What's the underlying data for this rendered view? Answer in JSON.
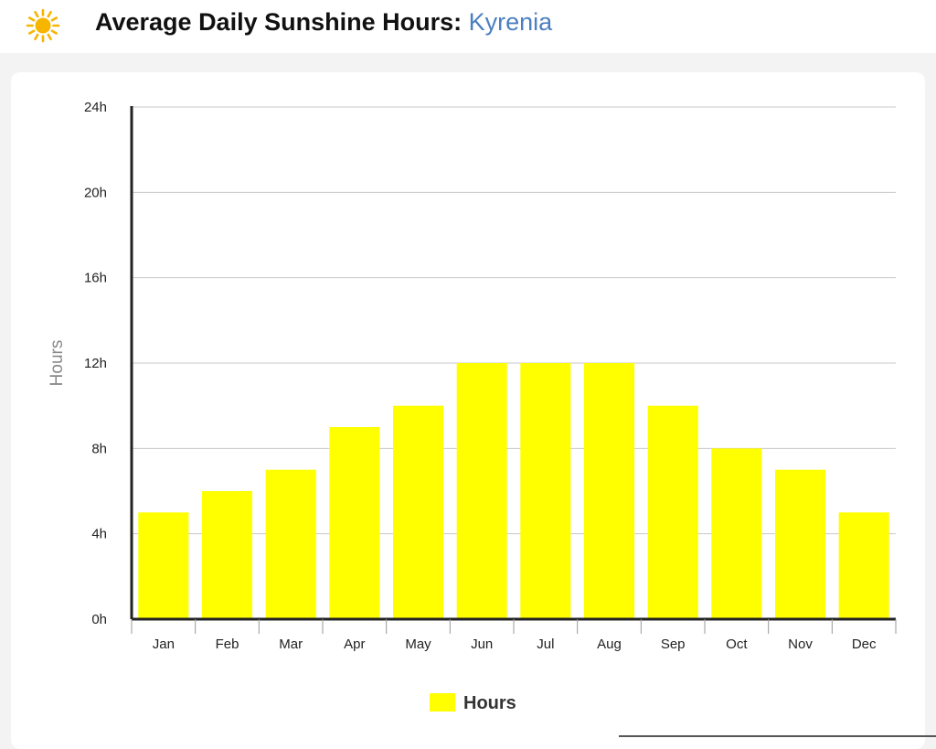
{
  "header": {
    "title_prefix": "Average Daily Sunshine Hours: ",
    "city": "Kyrenia",
    "icon": "sun-icon"
  },
  "colors": {
    "bar": "#ffff00",
    "city": "#4a7fc1",
    "grid": "#c8c8c8",
    "axis": "#222222",
    "sun": "#f7b500"
  },
  "chart_data": {
    "type": "bar",
    "title": "Average Daily Sunshine Hours: Kyrenia",
    "categories": [
      "Jan",
      "Feb",
      "Mar",
      "Apr",
      "May",
      "Jun",
      "Jul",
      "Aug",
      "Sep",
      "Oct",
      "Nov",
      "Dec"
    ],
    "series": [
      {
        "name": "Hours",
        "values": [
          5,
          6,
          7,
          9,
          10,
          12,
          12,
          12,
          10,
          8,
          7,
          5
        ]
      }
    ],
    "ylabel": "Hours",
    "xlabel": "",
    "ylim": [
      0,
      24
    ],
    "yticks": [
      0,
      4,
      8,
      12,
      16,
      20,
      24
    ],
    "ytick_labels": [
      "0h",
      "4h",
      "8h",
      "12h",
      "16h",
      "20h",
      "24h"
    ],
    "grid": true,
    "legend": "bottom-center"
  }
}
